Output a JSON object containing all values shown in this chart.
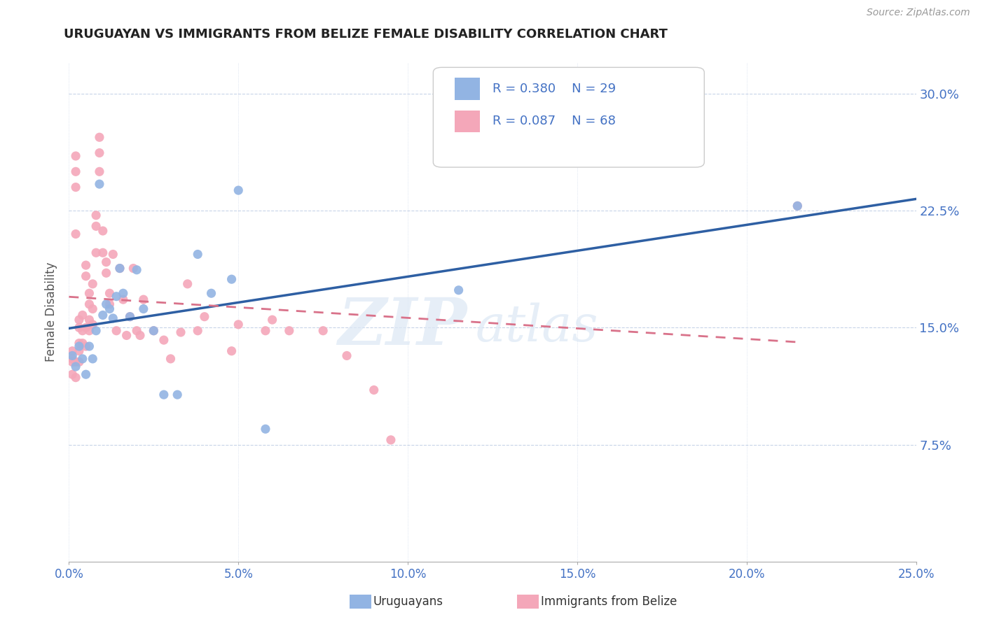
{
  "title": "URUGUAYAN VS IMMIGRANTS FROM BELIZE FEMALE DISABILITY CORRELATION CHART",
  "source": "Source: ZipAtlas.com",
  "ylabel": "Female Disability",
  "xlim": [
    0.0,
    0.25
  ],
  "ylim": [
    0.0,
    0.32
  ],
  "xticks": [
    0.0,
    0.05,
    0.1,
    0.15,
    0.2,
    0.25
  ],
  "yticks": [
    0.075,
    0.15,
    0.225,
    0.3
  ],
  "ytick_labels": [
    "7.5%",
    "15.0%",
    "22.5%",
    "30.0%"
  ],
  "xtick_labels": [
    "0.0%",
    "5.0%",
    "10.0%",
    "15.0%",
    "20.0%",
    "25.0%"
  ],
  "watermark_zip": "ZIP",
  "watermark_atlas": "atlas",
  "legend_r1": "R = 0.380",
  "legend_n1": "N = 29",
  "legend_r2": "R = 0.087",
  "legend_n2": "N = 68",
  "legend_label1": "Uruguayans",
  "legend_label2": "Immigrants from Belize",
  "color_uruguayan": "#92b4e3",
  "color_belize": "#f4a7b9",
  "color_line_uruguayan": "#2e5fa3",
  "color_line_belize": "#d9728a",
  "color_axis_labels": "#4472c4",
  "background_color": "#ffffff",
  "grid_color": "#c8d4e8",
  "uruguayan_x": [
    0.001,
    0.002,
    0.003,
    0.004,
    0.005,
    0.006,
    0.007,
    0.008,
    0.009,
    0.01,
    0.011,
    0.012,
    0.013,
    0.014,
    0.015,
    0.016,
    0.018,
    0.02,
    0.022,
    0.025,
    0.028,
    0.032,
    0.038,
    0.042,
    0.048,
    0.05,
    0.058,
    0.115,
    0.215
  ],
  "uruguayan_y": [
    0.132,
    0.125,
    0.138,
    0.13,
    0.12,
    0.138,
    0.13,
    0.148,
    0.242,
    0.158,
    0.165,
    0.162,
    0.156,
    0.17,
    0.188,
    0.172,
    0.157,
    0.187,
    0.162,
    0.148,
    0.107,
    0.107,
    0.197,
    0.172,
    0.181,
    0.238,
    0.085,
    0.174,
    0.228
  ],
  "belize_x": [
    0.001,
    0.001,
    0.001,
    0.001,
    0.002,
    0.002,
    0.002,
    0.002,
    0.002,
    0.002,
    0.003,
    0.003,
    0.003,
    0.003,
    0.003,
    0.004,
    0.004,
    0.004,
    0.005,
    0.005,
    0.005,
    0.005,
    0.006,
    0.006,
    0.006,
    0.006,
    0.007,
    0.007,
    0.007,
    0.008,
    0.008,
    0.008,
    0.009,
    0.009,
    0.009,
    0.01,
    0.01,
    0.011,
    0.011,
    0.012,
    0.012,
    0.013,
    0.014,
    0.015,
    0.016,
    0.017,
    0.018,
    0.019,
    0.02,
    0.021,
    0.022,
    0.025,
    0.028,
    0.03,
    0.033,
    0.035,
    0.038,
    0.04,
    0.048,
    0.05,
    0.058,
    0.06,
    0.065,
    0.075,
    0.082,
    0.09,
    0.095,
    0.215
  ],
  "belize_y": [
    0.135,
    0.13,
    0.128,
    0.12,
    0.26,
    0.25,
    0.24,
    0.21,
    0.128,
    0.118,
    0.155,
    0.15,
    0.14,
    0.135,
    0.128,
    0.158,
    0.148,
    0.14,
    0.19,
    0.183,
    0.15,
    0.138,
    0.172,
    0.165,
    0.155,
    0.148,
    0.178,
    0.162,
    0.152,
    0.222,
    0.215,
    0.198,
    0.272,
    0.262,
    0.25,
    0.212,
    0.198,
    0.192,
    0.185,
    0.172,
    0.165,
    0.197,
    0.148,
    0.188,
    0.168,
    0.145,
    0.157,
    0.188,
    0.148,
    0.145,
    0.168,
    0.148,
    0.142,
    0.13,
    0.147,
    0.178,
    0.148,
    0.157,
    0.135,
    0.152,
    0.148,
    0.155,
    0.148,
    0.148,
    0.132,
    0.11,
    0.078,
    0.228
  ]
}
